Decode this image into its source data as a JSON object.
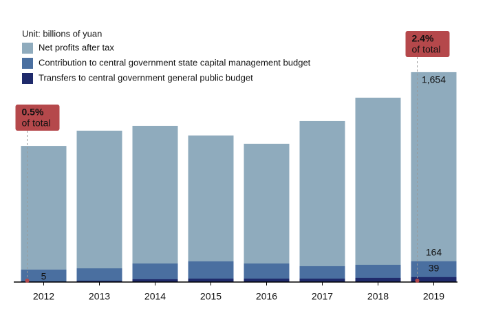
{
  "chart_data": {
    "type": "bar",
    "overlap": true,
    "subtitle": "Unit: billions of yuan",
    "categories": [
      "2012",
      "2013",
      "2014",
      "2015",
      "2016",
      "2017",
      "2018",
      "2019"
    ],
    "series": [
      {
        "name": "Net profits after tax",
        "color": "#8fabbd",
        "values": [
          1073,
          1193,
          1231,
          1155,
          1090,
          1269,
          1453,
          1654
        ],
        "value_labels": [
          null,
          null,
          null,
          null,
          null,
          null,
          null,
          "1,654"
        ]
      },
      {
        "name": "Contribution to central government state capital management budget",
        "color": "#4a6fa0",
        "values": [
          98,
          108,
          146,
          163,
          146,
          125,
          136,
          164
        ],
        "value_labels": [
          null,
          null,
          null,
          null,
          null,
          null,
          null,
          "164"
        ]
      },
      {
        "name": "Transfers to central government general public budget",
        "color": "#1f2a6b",
        "values": [
          5,
          10,
          22,
          27,
          27,
          27,
          33,
          39
        ],
        "value_labels": [
          "5",
          null,
          null,
          null,
          null,
          null,
          null,
          "39"
        ]
      }
    ],
    "annotations": [
      {
        "label": "0.5%",
        "text": "of total"
      },
      {
        "label": "2.4%",
        "text": "of total"
      }
    ],
    "ylim": [
      0,
      1800
    ],
    "annotation_color": "#b5484b"
  }
}
